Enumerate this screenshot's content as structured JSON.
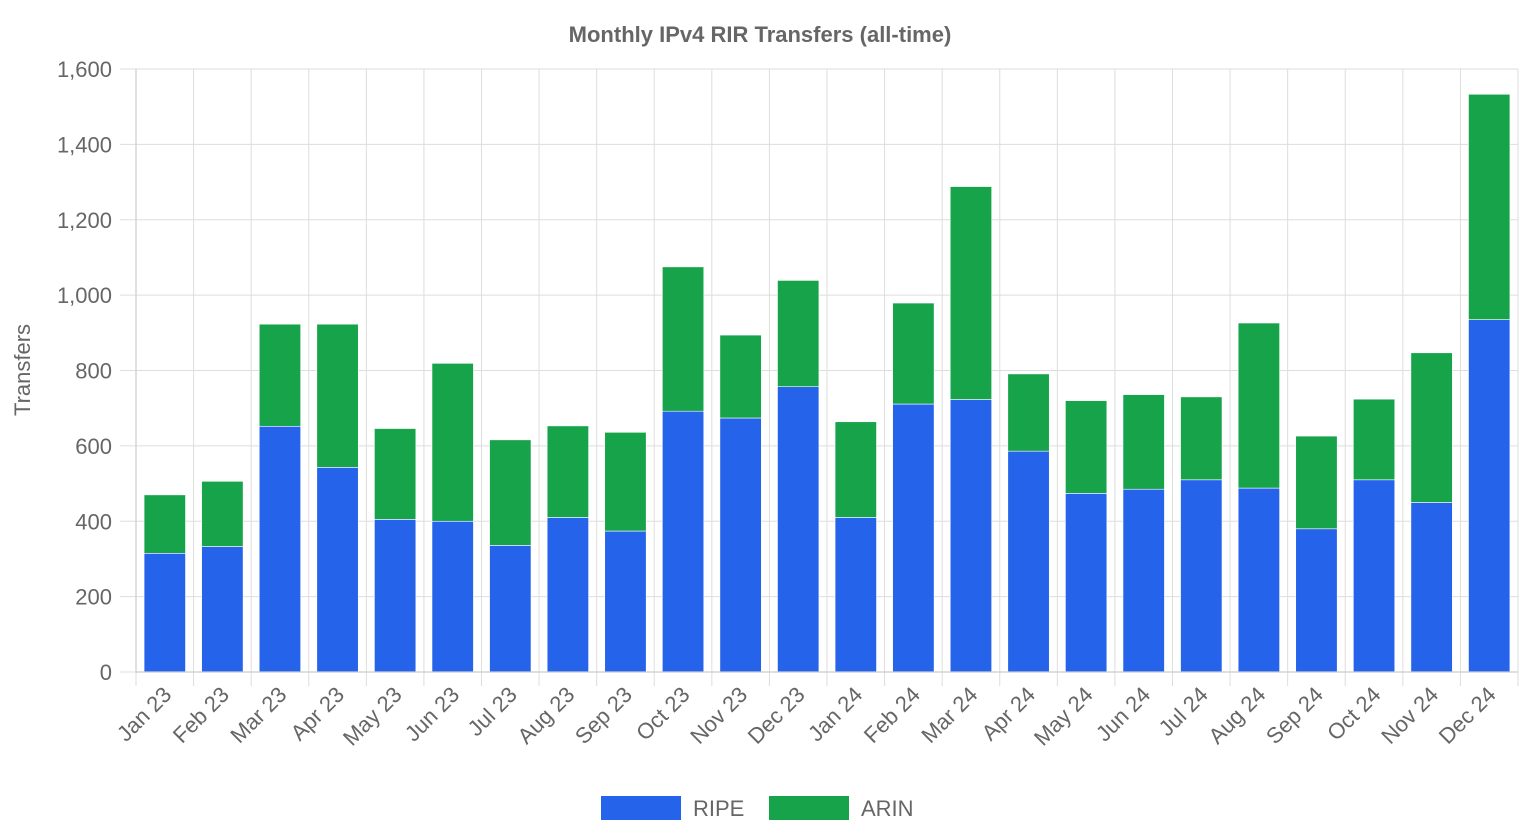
{
  "chart_data": {
    "type": "bar",
    "stacked": true,
    "title": "Monthly IPv4 RIR Transfers (all-time)",
    "xlabel": "",
    "ylabel": "Transfers",
    "ylim": [
      0,
      1600
    ],
    "yticks": [
      0,
      200,
      400,
      600,
      800,
      1000,
      1200,
      1400,
      1600
    ],
    "ytick_labels": [
      "0",
      "200",
      "400",
      "600",
      "800",
      "1,000",
      "1,200",
      "1,400",
      "1,600"
    ],
    "grid": true,
    "legend_position": "bottom",
    "categories": [
      "Jan 23",
      "Feb 23",
      "Mar 23",
      "Apr 23",
      "May 23",
      "Jun 23",
      "Jul 23",
      "Aug 23",
      "Sep 23",
      "Oct 23",
      "Nov 23",
      "Dec 23",
      "Jan 24",
      "Feb 24",
      "Mar 24",
      "Apr 24",
      "May 24",
      "Jun 24",
      "Jul 24",
      "Aug 24",
      "Sep 24",
      "Oct 24",
      "Nov 24",
      "Dec 24"
    ],
    "series": [
      {
        "name": "RIPE",
        "color": "#2563eb",
        "values": [
          315,
          333,
          652,
          543,
          405,
          400,
          336,
          410,
          374,
          692,
          674,
          757,
          410,
          711,
          723,
          586,
          474,
          485,
          510,
          488,
          380,
          510,
          450,
          935
        ]
      },
      {
        "name": "ARIN",
        "color": "#16a34a",
        "values": [
          155,
          173,
          271,
          380,
          241,
          419,
          280,
          243,
          262,
          383,
          220,
          282,
          254,
          268,
          565,
          205,
          246,
          251,
          220,
          438,
          246,
          214,
          397,
          598
        ]
      }
    ]
  }
}
